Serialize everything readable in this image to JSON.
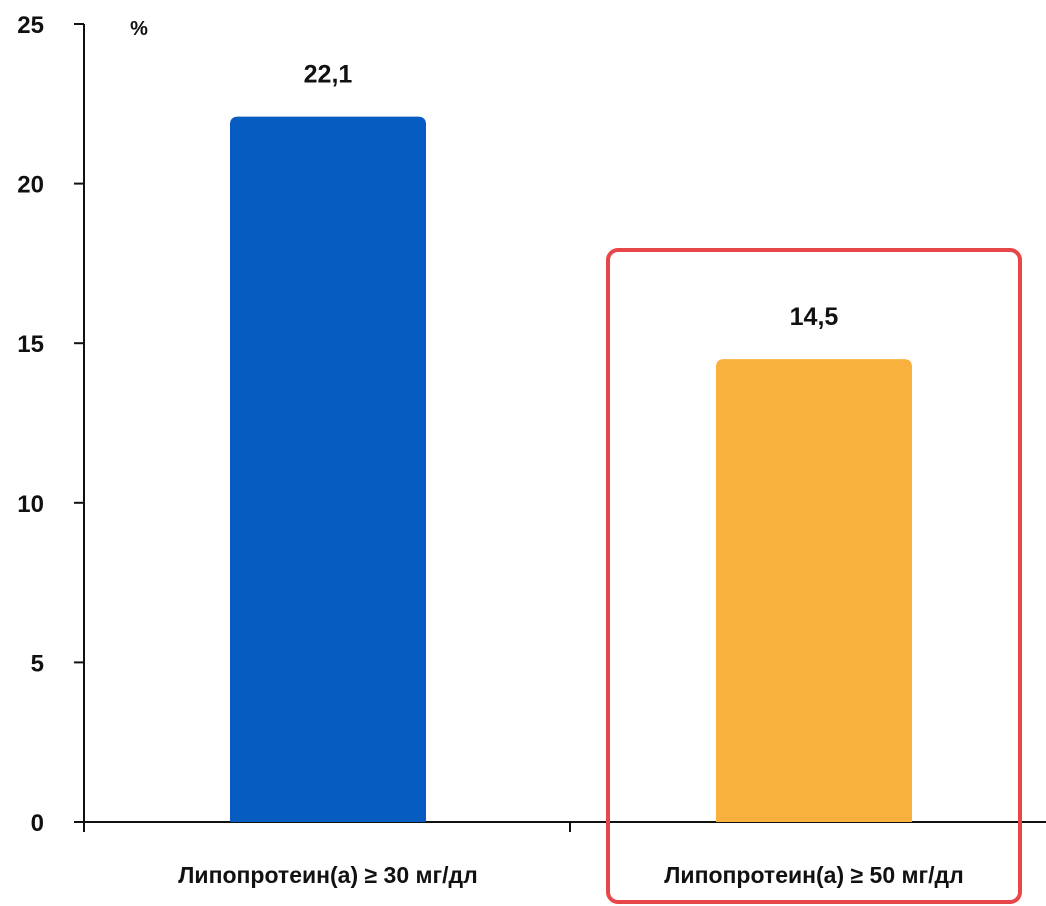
{
  "chart_data": {
    "type": "bar",
    "categories": [
      "Липопротеин(а) ≥ 30 мг/дл",
      "Липопротеин(а) ≥ 50 мг/дл"
    ],
    "values": [
      22.1,
      14.5
    ],
    "value_labels": [
      "22,1",
      "14,5"
    ],
    "ylabel": "%",
    "ylim": [
      0,
      25
    ],
    "yticks": [
      0,
      5,
      10,
      15,
      20,
      25
    ],
    "grid": false,
    "colors": [
      "#075CC2",
      "#FAB03C"
    ],
    "highlight": {
      "category_index": 1,
      "color": "#E8474A"
    }
  }
}
